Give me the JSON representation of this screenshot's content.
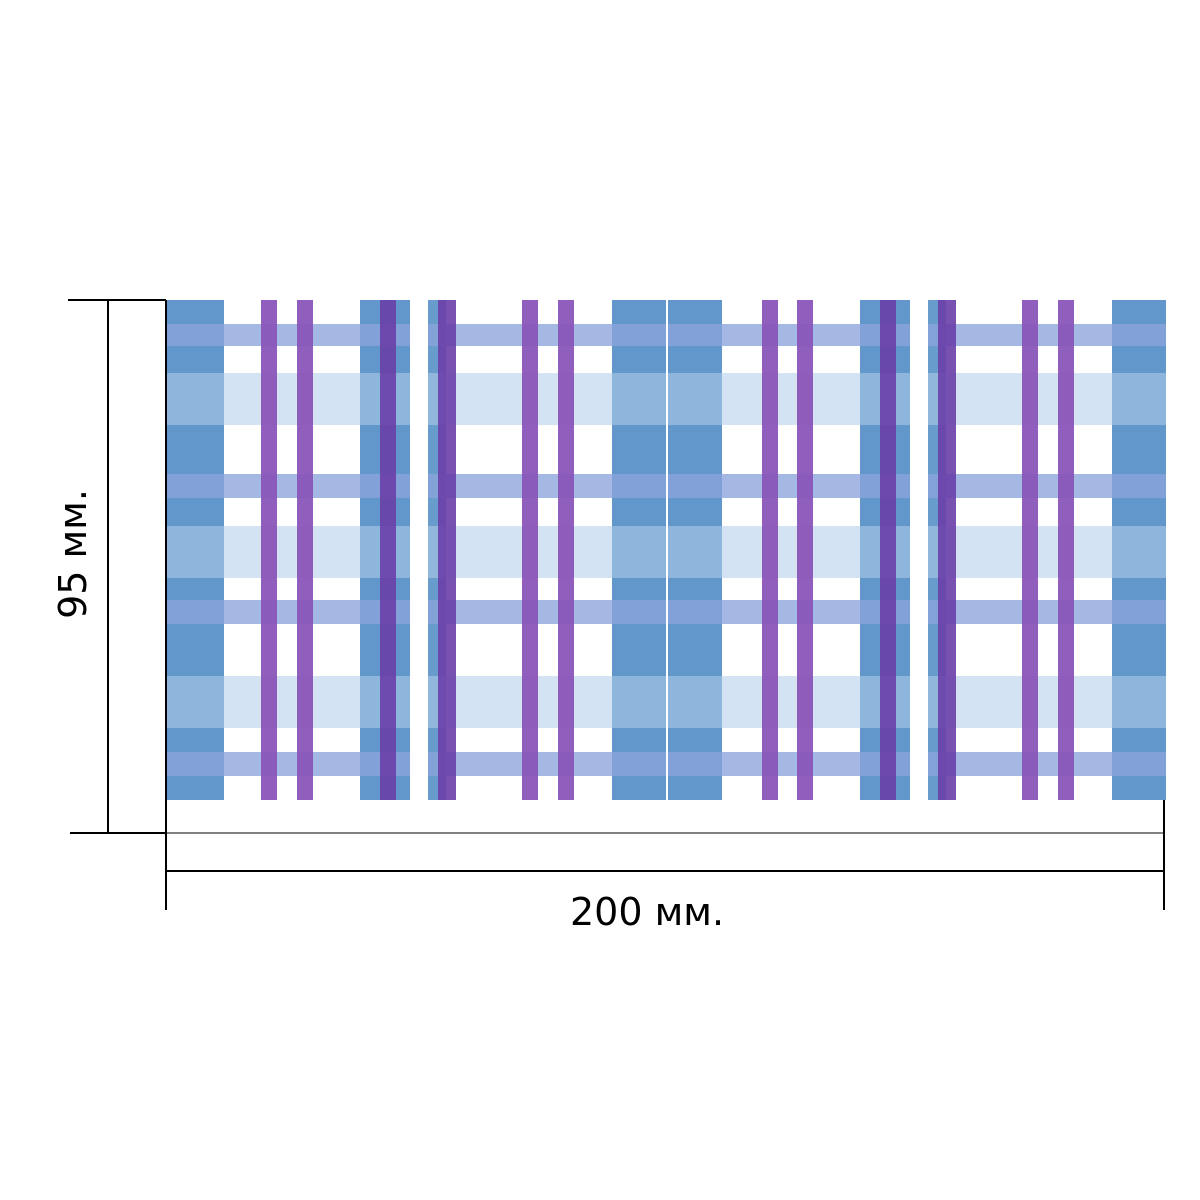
{
  "dimensions": {
    "width_label": "200 мм.",
    "height_label": "95 мм."
  },
  "pattern": {
    "colors": {
      "blue": "#5891c8",
      "light_blue": "#9dc1e2",
      "pale_blue": "#d5e4f4",
      "periwinkle": "#8aa4db",
      "purple": "#8a55b8",
      "deep_purple": "#6a3fa8",
      "white": "#ffffff"
    }
  }
}
